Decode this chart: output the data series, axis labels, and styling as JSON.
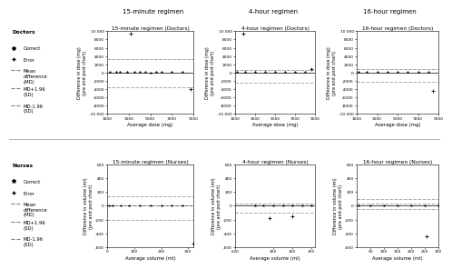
{
  "title_top": [
    "15-minute regimen",
    "4-hour regimen",
    "16-hour regimen"
  ],
  "subplot_titles_doctors": [
    "15-minute regimen (Doctors)",
    "4-hour regimen (Doctors)",
    "16-hour regimen (Doctors)"
  ],
  "subplot_titles_nurses": [
    "15-minute regimen (Nurses)",
    "4-hour regimen (Nurses)",
    "16-hour regimen (Nurses)"
  ],
  "doctors_data": {
    "reg15": {
      "correct_x": [
        1200,
        1800,
        2200,
        2800,
        3500,
        4000,
        4500,
        5000,
        5500,
        6000,
        7000,
        8000
      ],
      "correct_y": [
        50,
        100,
        50,
        100,
        50,
        100,
        50,
        0,
        100,
        50,
        100,
        50
      ],
      "error_x": [
        3200,
        8700
      ],
      "error_y": [
        9500,
        -4000
      ],
      "mean": 3200,
      "upper": 3200,
      "lower": -3500,
      "xlim": [
        1000,
        9000
      ],
      "ylim": [
        -10000,
        10000
      ],
      "xticks": [
        1000,
        3000,
        5000,
        7000,
        9000
      ],
      "yticks": [
        -10000,
        -8000,
        -6000,
        -4000,
        -2000,
        0,
        2000,
        4000,
        6000,
        8000,
        10000
      ],
      "yticklabels": [
        "-10 000",
        "-8000",
        "-6000",
        "-4000",
        "-2000",
        "0",
        "2000",
        "4000",
        "6000",
        "8000",
        "10 000"
      ]
    },
    "reg4": {
      "correct_x": [
        1200,
        2000,
        3000,
        4000,
        5000,
        6000,
        7000,
        8000
      ],
      "correct_y": [
        50,
        100,
        50,
        100,
        50,
        100,
        50,
        100
      ],
      "error_x": [
        1800,
        8600
      ],
      "error_y": [
        9500,
        800
      ],
      "mean": 600,
      "upper": 600,
      "lower": -2500,
      "xlim": [
        1000,
        9000
      ],
      "ylim": [
        -10000,
        10000
      ],
      "xticks": [
        1000,
        3000,
        5000,
        7000,
        9000
      ],
      "yticks": [
        -10000,
        -8000,
        -6000,
        -4000,
        -2000,
        0,
        2000,
        4000,
        6000,
        8000,
        10000
      ],
      "yticklabels": [
        "-10 000",
        "-8000",
        "-6000",
        "-4000",
        "-2000",
        "0",
        "2000",
        "4000",
        "6000",
        "8000",
        "10 000"
      ]
    },
    "reg16": {
      "correct_x": [
        1200,
        2000,
        3000,
        4000,
        5000,
        6000,
        7000,
        8000
      ],
      "correct_y": [
        50,
        100,
        50,
        100,
        50,
        100,
        50,
        100
      ],
      "error_x": [
        8500
      ],
      "error_y": [
        -4500
      ],
      "mean": 800,
      "upper": 800,
      "lower": -2200,
      "xlim": [
        1000,
        9000
      ],
      "ylim": [
        -10000,
        10000
      ],
      "xticks": [
        1000,
        3000,
        5000,
        7000,
        9000
      ],
      "yticks": [
        -10000,
        -8000,
        -6000,
        -4000,
        -2000,
        0,
        2000,
        4000,
        6000,
        8000,
        10000
      ],
      "yticklabels": [
        "-10 000",
        "-8000",
        "-6000",
        "-4000",
        "-2000",
        "0",
        "2000",
        "4000",
        "6000",
        "8000",
        "10 000"
      ]
    }
  },
  "nurses_data": {
    "reg15": {
      "correct_x": [
        5,
        20,
        50,
        80,
        120,
        160,
        200,
        240,
        280
      ],
      "correct_y": [
        10,
        5,
        10,
        5,
        10,
        5,
        10,
        5,
        10
      ],
      "error_x": [
        320
      ],
      "error_y": [
        -550
      ],
      "mean": 0,
      "upper": 140,
      "lower": -200,
      "xlim": [
        0,
        320
      ],
      "ylim": [
        -600,
        600
      ],
      "xticks": [
        0,
        100,
        200,
        300
      ],
      "yticks": [
        -600,
        -400,
        -200,
        0,
        200,
        400,
        600
      ],
      "yticklabels": [
        "-600",
        "-400",
        "-200",
        "0",
        "200",
        "400",
        "600"
      ]
    },
    "reg4": {
      "correct_x": [
        5,
        50,
        100,
        150,
        200,
        250,
        300
      ],
      "correct_y": [
        10,
        5,
        10,
        5,
        10,
        5,
        10
      ],
      "error_x": [
        80,
        200
      ],
      "error_y": [
        -175,
        -155
      ],
      "mean": 30,
      "upper": 30,
      "lower": -100,
      "xlim": [
        -100,
        320
      ],
      "ylim": [
        -600,
        600
      ],
      "xticks": [
        -100,
        100,
        200,
        300
      ],
      "yticks": [
        -600,
        -400,
        -200,
        0,
        200,
        400,
        600
      ],
      "yticklabels": [
        "-600",
        "-400",
        "-200",
        "0",
        "200",
        "400",
        "600"
      ]
    },
    "reg16": {
      "correct_x": [
        5,
        50,
        100,
        150,
        200,
        250,
        300
      ],
      "correct_y": [
        10,
        5,
        10,
        5,
        10,
        5,
        10
      ],
      "error_x": [
        255
      ],
      "error_y": [
        -450
      ],
      "mean": 30,
      "upper": 100,
      "lower": -50,
      "xlim": [
        0,
        300
      ],
      "ylim": [
        -600,
        600
      ],
      "xticks": [
        50,
        100,
        150,
        200,
        250,
        300
      ],
      "yticks": [
        -600,
        -400,
        -200,
        0,
        200,
        400,
        600
      ],
      "yticklabels": [
        "-600",
        "-400",
        "-200",
        "0",
        "200",
        "400",
        "600"
      ]
    }
  },
  "bg_color": "#ffffff",
  "mean_color": "#aaaaaa",
  "limit_color": "#aaaaaa",
  "correct_color": "#000000",
  "error_color": "#000000",
  "xlabel_doctors": "Average dose (mg)",
  "xlabel_nurses": "Average volume (ml)",
  "ylabel_doctors": "Difference in dose (mg)\n(pre and post chart)",
  "ylabel_nurses": "Difference in volume (ml)\n(pre and post chart)"
}
